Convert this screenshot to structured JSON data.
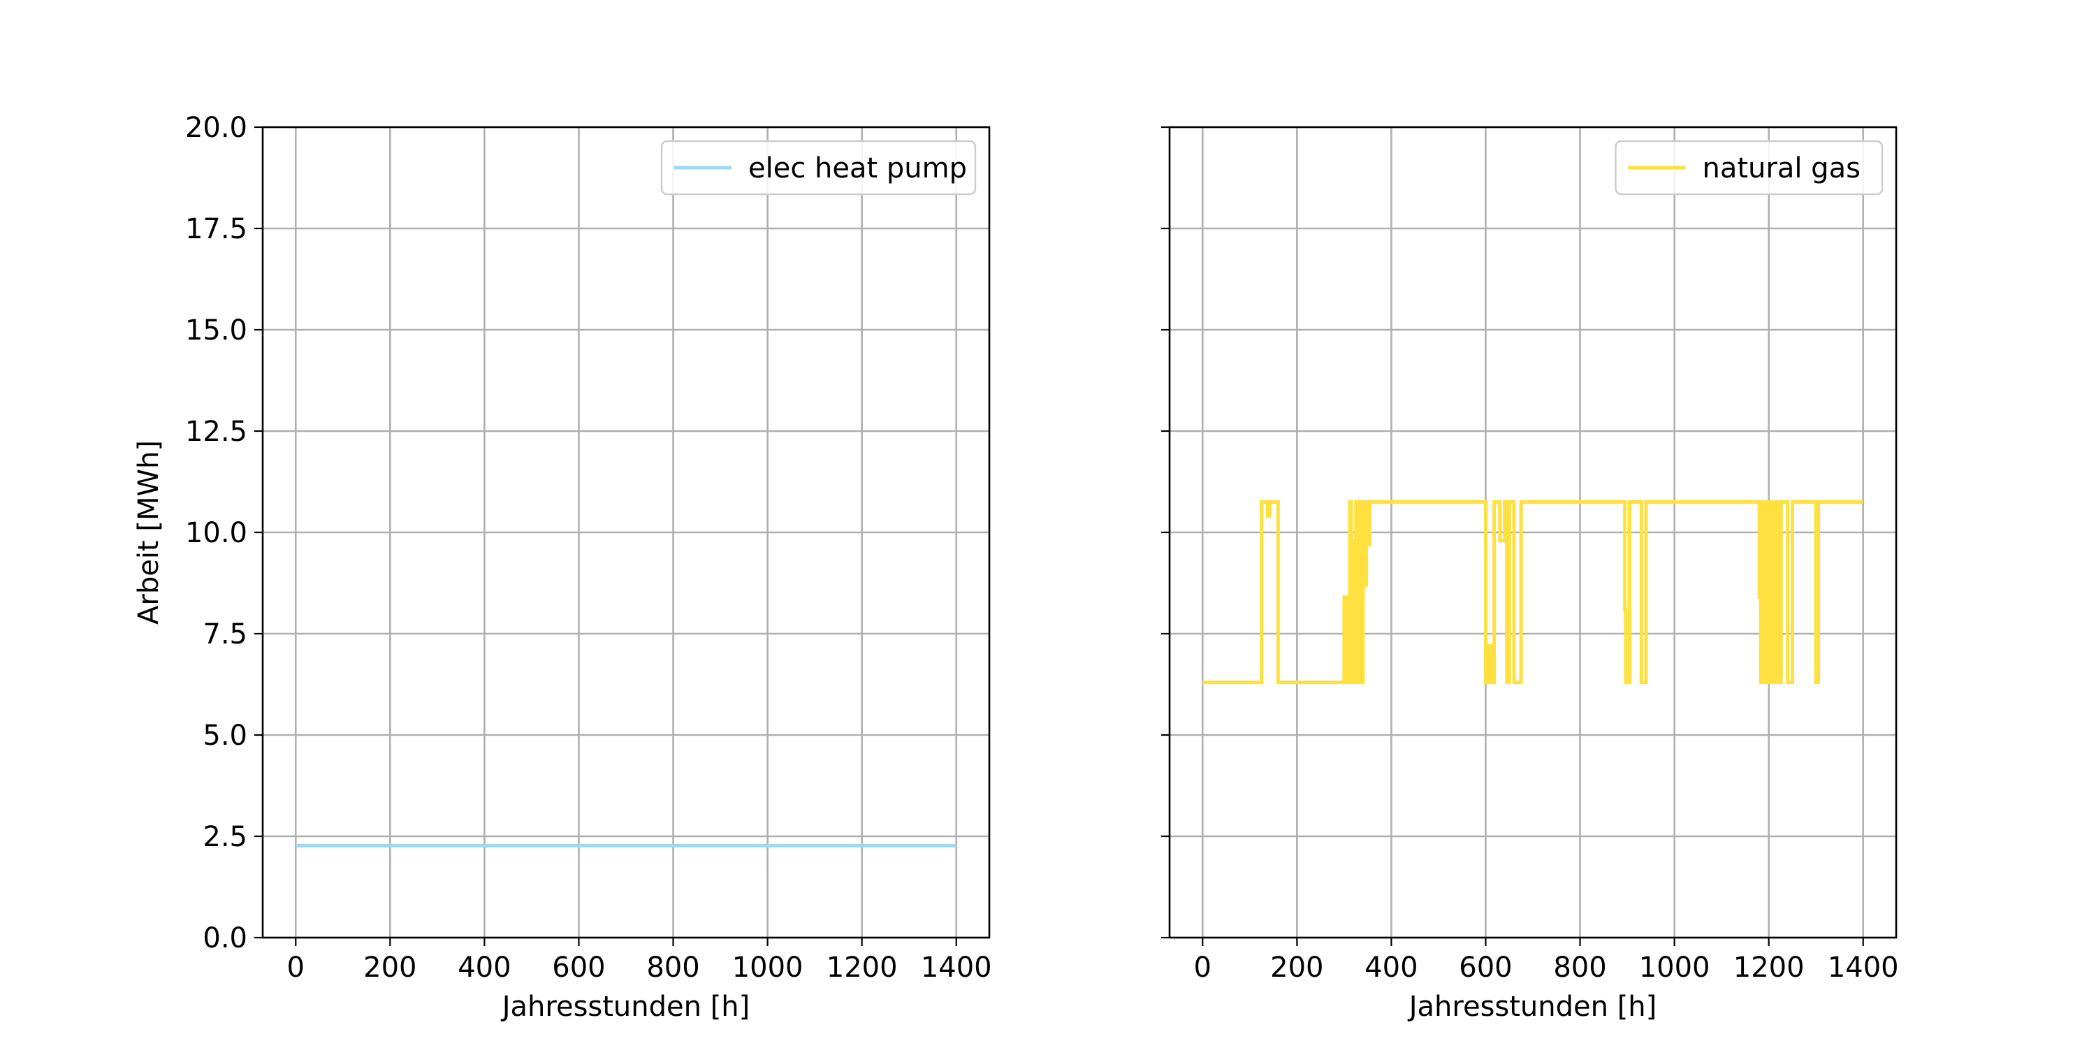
{
  "chart_data": [
    {
      "type": "line",
      "xlabel": "Jahresstunden [h]",
      "ylabel": "Arbeit [MWh]",
      "xlim": [
        -70,
        1470
      ],
      "ylim": [
        0,
        20
      ],
      "x_ticks": [
        0,
        200,
        400,
        600,
        800,
        1000,
        1200,
        1400
      ],
      "y_ticks": [
        0.0,
        2.5,
        5.0,
        7.5,
        10.0,
        12.5,
        15.0,
        17.5,
        20.0
      ],
      "grid": true,
      "legend_position": "upper right",
      "series": [
        {
          "name": "elec heat pump",
          "color": "#9fd8f5",
          "x": [
            0,
            1400
          ],
          "y": [
            2.27,
            2.27
          ]
        }
      ]
    },
    {
      "type": "line",
      "xlabel": "Jahresstunden [h]",
      "ylabel": "",
      "xlim": [
        -70,
        1470
      ],
      "ylim": [
        0,
        20
      ],
      "x_ticks": [
        0,
        200,
        400,
        600,
        800,
        1000,
        1200,
        1400
      ],
      "y_ticks": [
        0.0,
        2.5,
        5.0,
        7.5,
        10.0,
        12.5,
        15.0,
        17.5,
        20.0
      ],
      "grid": true,
      "legend_position": "upper right",
      "series": [
        {
          "name": "natural gas",
          "color": "#ffe03f",
          "x": [
            0,
            125,
            125,
            138,
            138,
            142,
            142,
            160,
            160,
            300,
            300,
            302,
            302,
            305,
            305,
            308,
            308,
            312,
            312,
            315,
            315,
            318,
            318,
            322,
            322,
            325,
            325,
            328,
            328,
            332,
            332,
            336,
            336,
            340,
            340,
            344,
            344,
            347,
            347,
            350,
            350,
            354,
            354,
            600,
            600,
            606,
            606,
            612,
            612,
            618,
            618,
            630,
            630,
            640,
            640,
            645,
            645,
            650,
            650,
            660,
            660,
            675,
            675,
            895,
            895,
            897,
            897,
            905,
            905,
            930,
            930,
            940,
            940,
            1180,
            1180,
            1183,
            1183,
            1186,
            1186,
            1190,
            1190,
            1194,
            1194,
            1198,
            1198,
            1202,
            1202,
            1206,
            1206,
            1210,
            1210,
            1214,
            1214,
            1218,
            1218,
            1222,
            1222,
            1226,
            1226,
            1240,
            1240,
            1250,
            1250,
            1260,
            1260,
            1300,
            1300,
            1305,
            1305,
            1400
          ],
          "y": [
            6.3,
            6.3,
            10.75,
            10.75,
            10.4,
            10.4,
            10.75,
            10.75,
            6.3,
            6.3,
            8.4,
            8.4,
            6.3,
            6.3,
            8.4,
            8.4,
            6.3,
            6.3,
            10.75,
            10.75,
            6.3,
            6.3,
            9.8,
            9.8,
            6.3,
            6.3,
            10.75,
            10.75,
            6.3,
            6.3,
            10.75,
            10.75,
            6.3,
            6.3,
            10.75,
            10.75,
            8.7,
            8.7,
            10.75,
            10.75,
            9.7,
            9.7,
            10.75,
            10.75,
            6.3,
            6.3,
            7.2,
            7.2,
            6.3,
            6.3,
            10.75,
            10.75,
            9.8,
            9.8,
            10.75,
            10.75,
            6.3,
            6.3,
            10.75,
            10.75,
            6.3,
            6.3,
            10.75,
            10.75,
            8.1,
            8.1,
            6.3,
            6.3,
            10.75,
            10.75,
            6.3,
            6.3,
            10.75,
            10.75,
            8.4,
            8.4,
            6.3,
            6.3,
            10.75,
            10.75,
            6.3,
            6.3,
            10.75,
            10.75,
            6.3,
            6.3,
            10.75,
            10.75,
            6.3,
            6.3,
            10.75,
            10.75,
            6.3,
            6.3,
            10.75,
            10.75,
            6.3,
            6.3,
            10.75,
            10.75,
            6.3,
            6.3,
            10.75,
            10.75,
            10.75,
            10.75,
            6.3,
            6.3,
            10.75,
            10.75
          ]
        }
      ]
    }
  ]
}
